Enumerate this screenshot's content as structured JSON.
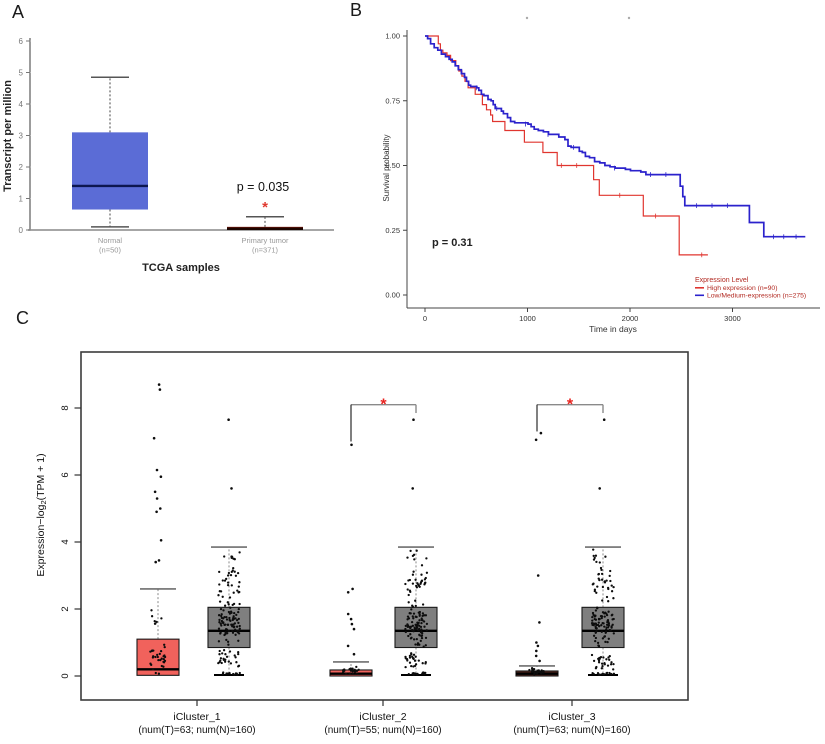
{
  "panels": {
    "a": "A",
    "b": "B",
    "c": "C"
  },
  "chart_data": [
    {
      "panel": "A",
      "type": "box",
      "title": "",
      "ylabel": "Transcript per million",
      "xlabel": "TCGA samples",
      "ylim": [
        0,
        6
      ],
      "yticks": [
        0,
        1,
        2,
        3,
        4,
        5,
        6
      ],
      "annotation": {
        "pvalue": "p = 0.035",
        "asterisk": "*",
        "asterisk_color": "#e03a2f"
      },
      "groups": [
        {
          "label": "Normal",
          "sublabel": "(n=50)",
          "fill": "#5b6cd6",
          "median_color": "#0d1750",
          "stats": {
            "whisker_low": 0.1,
            "q1": 0.65,
            "median": 1.4,
            "q3": 3.1,
            "whisker_high": 4.85
          }
        },
        {
          "label": "Primary tumor",
          "sublabel": "(n=371)",
          "fill": "#7e170c",
          "median_color": "#1c0400",
          "stats": {
            "whisker_low": 0,
            "q1": 0,
            "median": 0.04,
            "q3": 0.1,
            "whisker_high": 0.42
          }
        }
      ]
    },
    {
      "panel": "B",
      "type": "line",
      "ylabel": "Survival probability",
      "xlabel": "Time in days",
      "yticks": [
        "0.00",
        "0.25",
        "0.50",
        "0.75",
        "1.00"
      ],
      "ytick_values": [
        0,
        0.25,
        0.5,
        0.75,
        1.0
      ],
      "xticks": [
        0,
        1000,
        2000,
        3000
      ],
      "xlim": [
        0,
        3750
      ],
      "ylim": [
        0,
        1
      ],
      "pvalue": "p = 0.31",
      "legend": {
        "title": "Expression Level",
        "text_color": "#b22a22",
        "position": "bottom-right",
        "entries": [
          {
            "label": "High expression (n=90)",
            "color": "#e0352f"
          },
          {
            "label": "Low/Medium-expression (n=275)",
            "color": "#2b22cc"
          }
        ]
      },
      "series": [
        {
          "name": "High expression (n=90)",
          "color": "#e0352f",
          "width": 1.2,
          "steps": [
            [
              0,
              1
            ],
            [
              120,
              1
            ],
            [
              130,
              0.97
            ],
            [
              150,
              0.945
            ],
            [
              175,
              0.935
            ],
            [
              215,
              0.925
            ],
            [
              250,
              0.905
            ],
            [
              300,
              0.885
            ],
            [
              330,
              0.865
            ],
            [
              360,
              0.845
            ],
            [
              390,
              0.825
            ],
            [
              420,
              0.8
            ],
            [
              470,
              0.8
            ],
            [
              490,
              0.775
            ],
            [
              540,
              0.775
            ],
            [
              560,
              0.735
            ],
            [
              600,
              0.715
            ],
            [
              640,
              0.695
            ],
            [
              660,
              0.67
            ],
            [
              760,
              0.67
            ],
            [
              780,
              0.635
            ],
            [
              950,
              0.635
            ],
            [
              970,
              0.59
            ],
            [
              1130,
              0.59
            ],
            [
              1150,
              0.55
            ],
            [
              1270,
              0.55
            ],
            [
              1290,
              0.5
            ],
            [
              1630,
              0.5
            ],
            [
              1645,
              0.445
            ],
            [
              1685,
              0.445
            ],
            [
              1700,
              0.385
            ],
            [
              2110,
              0.385
            ],
            [
              2130,
              0.305
            ],
            [
              2460,
              0.305
            ],
            [
              2480,
              0.155
            ],
            [
              2760,
              0.155
            ]
          ]
        },
        {
          "name": "Low/Medium-expression (n=275)",
          "color": "#2b22cc",
          "width": 1.7,
          "steps": [
            [
              0,
              1
            ],
            [
              25,
              0.99
            ],
            [
              55,
              0.97
            ],
            [
              90,
              0.955
            ],
            [
              125,
              0.945
            ],
            [
              160,
              0.93
            ],
            [
              200,
              0.92
            ],
            [
              235,
              0.91
            ],
            [
              265,
              0.9
            ],
            [
              295,
              0.885
            ],
            [
              325,
              0.87
            ],
            [
              355,
              0.855
            ],
            [
              385,
              0.84
            ],
            [
              405,
              0.825
            ],
            [
              425,
              0.81
            ],
            [
              445,
              0.805
            ],
            [
              505,
              0.8
            ],
            [
              525,
              0.79
            ],
            [
              550,
              0.775
            ],
            [
              575,
              0.77
            ],
            [
              615,
              0.755
            ],
            [
              645,
              0.75
            ],
            [
              665,
              0.735
            ],
            [
              685,
              0.72
            ],
            [
              745,
              0.71
            ],
            [
              765,
              0.7
            ],
            [
              805,
              0.685
            ],
            [
              835,
              0.67
            ],
            [
              875,
              0.665
            ],
            [
              1005,
              0.66
            ],
            [
              1035,
              0.65
            ],
            [
              1065,
              0.64
            ],
            [
              1105,
              0.635
            ],
            [
              1155,
              0.63
            ],
            [
              1205,
              0.62
            ],
            [
              1305,
              0.61
            ],
            [
              1365,
              0.6
            ],
            [
              1395,
              0.575
            ],
            [
              1425,
              0.57
            ],
            [
              1505,
              0.555
            ],
            [
              1535,
              0.55
            ],
            [
              1565,
              0.535
            ],
            [
              1605,
              0.53
            ],
            [
              1655,
              0.515
            ],
            [
              1705,
              0.51
            ],
            [
              1755,
              0.5
            ],
            [
              1805,
              0.495
            ],
            [
              1855,
              0.49
            ],
            [
              1955,
              0.485
            ],
            [
              2005,
              0.48
            ],
            [
              2105,
              0.475
            ],
            [
              2155,
              0.465
            ],
            [
              2470,
              0.465
            ],
            [
              2490,
              0.42
            ],
            [
              2515,
              0.38
            ],
            [
              2535,
              0.345
            ],
            [
              3140,
              0.345
            ],
            [
              3165,
              0.28
            ],
            [
              3285,
              0.28
            ],
            [
              3305,
              0.225
            ],
            [
              3710,
              0.225
            ]
          ]
        }
      ],
      "censor_marks": [
        {
          "series": 0,
          "points": [
            [
              1330,
              0.5
            ],
            [
              1480,
              0.5
            ],
            [
              1900,
              0.385
            ],
            [
              2250,
              0.305
            ],
            [
              2700,
              0.155
            ]
          ]
        },
        {
          "series": 1,
          "points": [
            [
              500,
              0.8
            ],
            [
              700,
              0.72
            ],
            [
              980,
              0.66
            ],
            [
              1200,
              0.62
            ],
            [
              1450,
              0.57
            ],
            [
              1850,
              0.49
            ],
            [
              2200,
              0.465
            ],
            [
              2350,
              0.465
            ],
            [
              2650,
              0.345
            ],
            [
              2800,
              0.345
            ],
            [
              2950,
              0.345
            ],
            [
              3400,
              0.225
            ],
            [
              3500,
              0.225
            ],
            [
              3620,
              0.225
            ]
          ]
        }
      ],
      "artifact_dots": [
        [
          527,
          18
        ],
        [
          629,
          18
        ]
      ]
    },
    {
      "panel": "C",
      "type": "box",
      "ylabel_prefix": "Expression−log",
      "ylabel_sub": "2",
      "ylabel_suffix": "(TPM + 1)",
      "yticks": [
        0,
        2,
        4,
        6,
        8
      ],
      "ylim": [
        0,
        9.4
      ],
      "tumor_fill": "#f1625c",
      "dark_tumor_fill": "#59261d",
      "normal_fill": "#7f7f7f",
      "sig_color": "#e8211d",
      "groups": [
        {
          "label": "iCluster_1",
          "sublabel": "(num(T)=63; num(N)=160)",
          "tumor": {
            "dark": false,
            "stats": {
              "whisker_low": 0,
              "q1": 0.02,
              "median": 0.2,
              "q3": 1.1,
              "whisker_high": 2.6
            },
            "outliers": [
              3.4,
              3.45,
              4.05,
              4.9,
              5.0,
              5.3,
              5.5,
              5.95,
              6.15,
              7.1,
              8.55,
              8.7
            ],
            "jitter": [
              {
                "count": 30,
                "min": 0.02,
                "max": 1.1
              },
              {
                "count": 7,
                "min": 1.2,
                "max": 2.1
              }
            ]
          },
          "normal": {
            "stats": {
              "whisker_low": 0.03,
              "q1": 0.85,
              "median": 1.35,
              "q3": 2.05,
              "whisker_high": 3.85
            },
            "outliers": [
              5.6,
              7.65
            ],
            "jitter": [
              {
                "count": 12,
                "min": 0.03,
                "max": 0.12
              },
              {
                "count": 25,
                "min": 0.15,
                "max": 0.8
              },
              {
                "count": 85,
                "min": 0.8,
                "max": 2.3
              },
              {
                "count": 28,
                "min": 2.3,
                "max": 3.3
              },
              {
                "count": 8,
                "min": 3.3,
                "max": 3.8
              }
            ]
          },
          "sig": null
        },
        {
          "label": "iCluster_2",
          "sublabel": "(num(T)=55; num(N)=160)",
          "tumor": {
            "dark": false,
            "stats": {
              "whisker_low": 0,
              "q1": 0,
              "median": 0.07,
              "q3": 0.18,
              "whisker_high": 0.42
            },
            "outliers": [
              0.65,
              0.9,
              1.4,
              1.55,
              1.7,
              1.85,
              2.5,
              2.6,
              6.9
            ],
            "jitter": [
              {
                "count": 24,
                "min": 0.01,
                "max": 0.3
              }
            ]
          },
          "normal": {
            "stats": {
              "whisker_low": 0.03,
              "q1": 0.85,
              "median": 1.35,
              "q3": 2.05,
              "whisker_high": 3.85
            },
            "outliers": [
              5.6,
              7.65
            ],
            "jitter": [
              {
                "count": 12,
                "min": 0.03,
                "max": 0.12
              },
              {
                "count": 25,
                "min": 0.15,
                "max": 0.8
              },
              {
                "count": 85,
                "min": 0.8,
                "max": 2.3
              },
              {
                "count": 28,
                "min": 2.3,
                "max": 3.3
              },
              {
                "count": 8,
                "min": 3.3,
                "max": 3.8
              }
            ]
          },
          "sig": {
            "asterisk": "*",
            "bar_y": 8.1,
            "left_drop_to": 7.0,
            "right_drop_to": 7.85
          }
        },
        {
          "label": "iCluster_3",
          "sublabel": "(num(T)=63; num(N)=160)",
          "tumor": {
            "dark": true,
            "stats": {
              "whisker_low": 0,
              "q1": 0,
              "median": 0.07,
              "q3": 0.15,
              "whisker_high": 0.3
            },
            "outliers": [
              0.45,
              0.6,
              0.75,
              0.9,
              1.0,
              1.6,
              3.0,
              7.05,
              7.25
            ],
            "jitter": [
              {
                "count": 24,
                "min": 0.01,
                "max": 0.25
              }
            ]
          },
          "normal": {
            "stats": {
              "whisker_low": 0.03,
              "q1": 0.85,
              "median": 1.35,
              "q3": 2.05,
              "whisker_high": 3.85
            },
            "outliers": [
              5.6,
              7.65
            ],
            "jitter": [
              {
                "count": 12,
                "min": 0.03,
                "max": 0.12
              },
              {
                "count": 25,
                "min": 0.15,
                "max": 0.8
              },
              {
                "count": 85,
                "min": 0.8,
                "max": 2.3
              },
              {
                "count": 28,
                "min": 2.3,
                "max": 3.3
              },
              {
                "count": 8,
                "min": 3.3,
                "max": 3.8
              }
            ]
          },
          "sig": {
            "asterisk": "*",
            "bar_y": 8.1,
            "left_drop_to": 7.3,
            "right_drop_to": 7.85
          }
        }
      ]
    }
  ]
}
